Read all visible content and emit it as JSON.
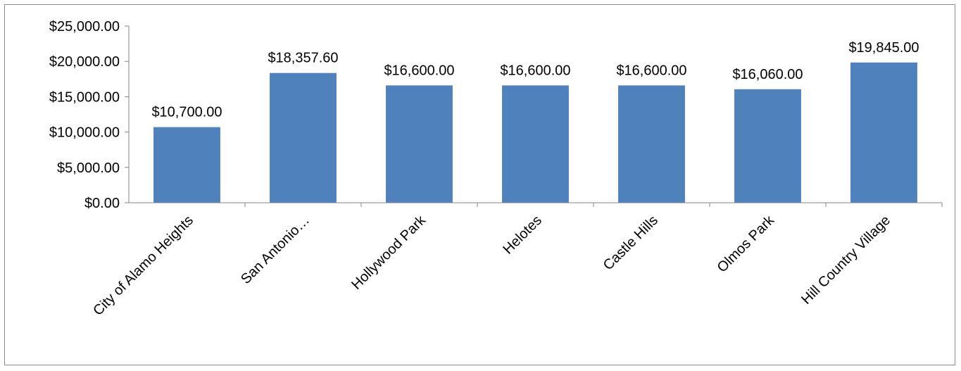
{
  "chart_data": {
    "type": "bar",
    "title": "",
    "xlabel": "",
    "ylabel": "",
    "categories": [
      "City of Alamo Heights",
      "San Antonio…",
      "Hollywood Park",
      "Helotes",
      "Castle Hills",
      "Olmos Park",
      "Hill Country Village"
    ],
    "values": [
      10700,
      18357.6,
      16600,
      16600,
      16600,
      16060,
      19845
    ],
    "value_labels": [
      "$10,700.00",
      "$18,357.60",
      "$16,600.00",
      "$16,600.00",
      "$16,600.00",
      "$16,060.00",
      "$19,845.00"
    ],
    "ylim": [
      0,
      25000
    ],
    "yticks": [
      0,
      5000,
      10000,
      15000,
      20000,
      25000
    ],
    "ytick_labels": [
      "$0.00",
      "$5,000.00",
      "$10,000.00",
      "$15,000.00",
      "$20,000.00",
      "$25,000.00"
    ],
    "grid": false,
    "legend": "none",
    "bar_color": "#4f81bd",
    "axis_color": "#868686"
  }
}
